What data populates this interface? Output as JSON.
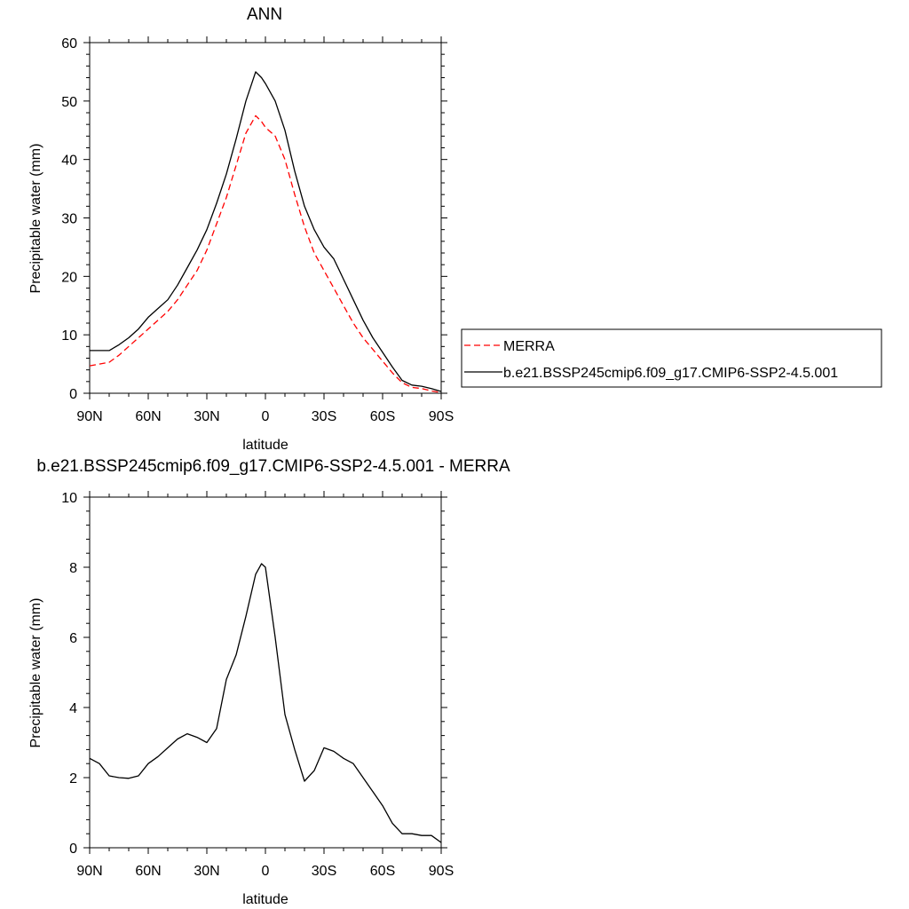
{
  "chart_data": [
    {
      "type": "line",
      "title": "ANN",
      "xlabel": "latitude",
      "ylabel": "Precipitable water (mm)",
      "xlim": [
        90,
        -90
      ],
      "ylim": [
        0,
        60
      ],
      "x_ticks": [
        90,
        60,
        30,
        0,
        -30,
        -60,
        -90
      ],
      "x_tick_labels": [
        "90N",
        "60N",
        "30N",
        "0",
        "30S",
        "60S",
        "90S"
      ],
      "y_ticks": [
        0,
        10,
        20,
        30,
        40,
        50,
        60
      ],
      "y_tick_labels": [
        "0",
        "10",
        "20",
        "30",
        "40",
        "50",
        "60"
      ],
      "legend_position": "right",
      "x": [
        90,
        85,
        80,
        75,
        70,
        65,
        60,
        55,
        50,
        45,
        40,
        35,
        30,
        25,
        20,
        15,
        10,
        5,
        2,
        0,
        -5,
        -10,
        -15,
        -20,
        -25,
        -30,
        -35,
        -40,
        -45,
        -50,
        -55,
        -60,
        -65,
        -70,
        -75,
        -80,
        -85,
        -90
      ],
      "series": [
        {
          "name": "MERRA",
          "color": "#ff0000",
          "dash": "dashed",
          "values": [
            4.7,
            5.0,
            5.3,
            6.5,
            8.0,
            9.5,
            11.0,
            12.5,
            14.0,
            16.0,
            18.5,
            21.0,
            24.5,
            29.0,
            33.5,
            39.0,
            44.5,
            47.5,
            46.5,
            45.5,
            44.0,
            40.0,
            34.0,
            28.5,
            24.0,
            21.0,
            18.0,
            15.0,
            12.0,
            9.5,
            7.5,
            5.5,
            3.5,
            1.8,
            1.0,
            0.8,
            0.4,
            0.1
          ]
        },
        {
          "name": "b.e21.BSSP245cmip6.f09_g17.CMIP6-SSP2-4.5.001",
          "color": "#000000",
          "dash": "solid",
          "values": [
            7.3,
            7.3,
            7.3,
            8.3,
            9.5,
            11.0,
            13.0,
            14.5,
            16.0,
            18.5,
            21.5,
            24.5,
            28.0,
            32.5,
            37.5,
            43.5,
            50.0,
            55.0,
            54.0,
            53.0,
            50.0,
            45.0,
            38.0,
            32.0,
            28.0,
            25.0,
            23.0,
            19.5,
            16.0,
            12.5,
            9.5,
            7.0,
            4.5,
            2.2,
            1.4,
            1.2,
            0.8,
            0.3
          ]
        }
      ]
    },
    {
      "type": "line",
      "title": "b.e21.BSSP245cmip6.f09_g17.CMIP6-SSP2-4.5.001 - MERRA",
      "xlabel": "latitude",
      "ylabel": "Precipitable water (mm)",
      "xlim": [
        90,
        -90
      ],
      "ylim": [
        0,
        10
      ],
      "x_ticks": [
        90,
        60,
        30,
        0,
        -30,
        -60,
        -90
      ],
      "x_tick_labels": [
        "90N",
        "60N",
        "30N",
        "0",
        "30S",
        "60S",
        "90S"
      ],
      "y_ticks": [
        0,
        2,
        4,
        6,
        8,
        10
      ],
      "y_tick_labels": [
        "0",
        "2",
        "4",
        "6",
        "8",
        "10"
      ],
      "x": [
        90,
        85,
        80,
        75,
        70,
        65,
        60,
        55,
        50,
        45,
        40,
        35,
        30,
        25,
        20,
        15,
        10,
        5,
        2,
        0,
        -5,
        -10,
        -15,
        -20,
        -25,
        -30,
        -35,
        -40,
        -45,
        -50,
        -55,
        -60,
        -65,
        -70,
        -75,
        -80,
        -85,
        -90
      ],
      "series": [
        {
          "color": "#000000",
          "dash": "solid",
          "values": [
            2.55,
            2.4,
            2.05,
            2.0,
            1.98,
            2.05,
            2.4,
            2.6,
            2.85,
            3.1,
            3.25,
            3.15,
            3.0,
            3.4,
            4.8,
            5.5,
            6.6,
            7.8,
            8.1,
            8.0,
            6.0,
            3.8,
            2.8,
            1.9,
            2.2,
            2.85,
            2.75,
            2.55,
            2.4,
            2.0,
            1.6,
            1.2,
            0.7,
            0.4,
            0.4,
            0.35,
            0.35,
            0.15
          ]
        }
      ]
    }
  ]
}
